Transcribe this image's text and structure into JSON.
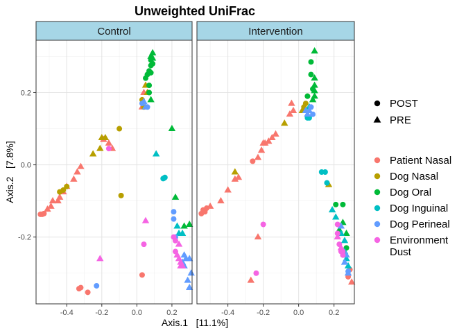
{
  "chart_data": {
    "type": "scatter",
    "title": "Unweighted UniFrac",
    "xlabel": "Axis.1   [11.1%]",
    "ylabel": "Axis.2   [7.8%]",
    "xlim": [
      -0.575,
      0.315
    ],
    "ylim": [
      -0.385,
      0.345
    ],
    "x_ticks": [
      -0.4,
      -0.2,
      0.0,
      0.2
    ],
    "x_tick_labels": [
      "-0.4",
      "-0.2",
      "0.0",
      "0.2"
    ],
    "y_ticks": [
      -0.2,
      0.0,
      0.2
    ],
    "y_tick_labels": [
      "-0.2",
      "0.0",
      "0.2"
    ],
    "grid": true,
    "panels": [
      "Control",
      "Intervention"
    ],
    "shape_legend": [
      {
        "label": "POST",
        "shape": "circle"
      },
      {
        "label": "PRE",
        "shape": "triangle"
      }
    ],
    "color_legend": [
      {
        "key": "patient_nasal",
        "label": "Patient Nasal",
        "color": "#F8766D"
      },
      {
        "key": "dog_nasal",
        "label": "Dog Nasal",
        "color": "#B79F00"
      },
      {
        "key": "dog_oral",
        "label": "Dog Oral",
        "color": "#00BA38"
      },
      {
        "key": "dog_inguinal",
        "label": "Dog Inguinal",
        "color": "#00BFC4"
      },
      {
        "key": "dog_perineal",
        "label": "Dog Perineal",
        "color": "#619CFF"
      },
      {
        "key": "environment_dust",
        "label": "Environment Dust",
        "label_lines": [
          "Environment",
          "Dust"
        ],
        "color": "#F564E3"
      }
    ],
    "series": [
      {
        "panel": "Control",
        "group": "patient_nasal",
        "shape": "circle",
        "points": [
          [
            -0.55,
            -0.137
          ],
          [
            -0.54,
            -0.137
          ],
          [
            -0.53,
            -0.135
          ],
          [
            -0.33,
            -0.343
          ],
          [
            -0.32,
            -0.34
          ],
          [
            -0.28,
            -0.353
          ],
          [
            0.03,
            -0.305
          ]
        ]
      },
      {
        "panel": "Control",
        "group": "patient_nasal",
        "shape": "triangle",
        "points": [
          [
            -0.51,
            -0.123
          ],
          [
            -0.49,
            -0.115
          ],
          [
            -0.48,
            -0.1
          ],
          [
            -0.45,
            -0.1
          ],
          [
            -0.44,
            -0.09
          ],
          [
            -0.42,
            -0.075
          ],
          [
            -0.4,
            -0.06
          ],
          [
            -0.36,
            -0.04
          ],
          [
            -0.34,
            -0.02
          ],
          [
            -0.32,
            -0.005
          ],
          [
            -0.19,
            0.07
          ],
          [
            -0.16,
            0.06
          ],
          [
            -0.14,
            0.045
          ],
          [
            0.03,
            0.16
          ],
          [
            0.04,
            0.2
          ],
          [
            0.05,
            0.22
          ]
        ]
      },
      {
        "panel": "Control",
        "group": "dog_nasal",
        "shape": "circle",
        "points": [
          [
            -0.44,
            -0.075
          ],
          [
            -0.42,
            -0.07
          ],
          [
            -0.4,
            -0.06
          ],
          [
            -0.1,
            0.1
          ],
          [
            -0.09,
            -0.085
          ],
          [
            0.03,
            0.18
          ],
          [
            0.04,
            0.16
          ]
        ]
      },
      {
        "panel": "Control",
        "group": "dog_nasal",
        "shape": "triangle",
        "points": [
          [
            -0.25,
            0.03
          ],
          [
            -0.21,
            0.045
          ],
          [
            -0.2,
            0.075
          ],
          [
            -0.18,
            0.075
          ],
          [
            0.05,
            0.22
          ],
          [
            0.06,
            0.2
          ]
        ]
      },
      {
        "panel": "Control",
        "group": "dog_oral",
        "shape": "circle",
        "points": [
          [
            0.05,
            0.24
          ],
          [
            0.06,
            0.25
          ],
          [
            0.07,
            0.26
          ],
          [
            0.08,
            0.255
          ],
          [
            0.08,
            0.275
          ],
          [
            0.08,
            0.29
          ],
          [
            0.09,
            0.28
          ],
          [
            0.07,
            0.22
          ],
          [
            0.07,
            0.2
          ]
        ]
      },
      {
        "panel": "Control",
        "group": "dog_oral",
        "shape": "triangle",
        "points": [
          [
            0.08,
            0.3
          ],
          [
            0.09,
            0.31
          ],
          [
            0.09,
            0.295
          ],
          [
            0.2,
            0.1
          ],
          [
            0.22,
            -0.09
          ],
          [
            0.27,
            -0.17
          ],
          [
            0.3,
            -0.165
          ],
          [
            0.08,
            0.18
          ]
        ]
      },
      {
        "panel": "Control",
        "group": "dog_inguinal",
        "shape": "circle",
        "points": [
          [
            0.15,
            -0.038
          ],
          [
            0.155,
            -0.037
          ],
          [
            0.16,
            -0.035
          ]
        ]
      },
      {
        "panel": "Control",
        "group": "dog_inguinal",
        "shape": "triangle",
        "points": [
          [
            0.11,
            0.03
          ],
          [
            0.23,
            -0.17
          ],
          [
            0.24,
            -0.19
          ],
          [
            0.26,
            -0.19
          ]
        ]
      },
      {
        "panel": "Control",
        "group": "dog_perineal",
        "shape": "circle",
        "points": [
          [
            -0.23,
            -0.335
          ],
          [
            0.03,
            0.17
          ],
          [
            0.06,
            0.16
          ],
          [
            0.21,
            -0.13
          ],
          [
            0.21,
            -0.15
          ],
          [
            0.22,
            -0.2
          ]
        ]
      },
      {
        "panel": "Control",
        "group": "dog_perineal",
        "shape": "triangle",
        "points": [
          [
            0.04,
            0.175
          ],
          [
            0.05,
            0.16
          ],
          [
            0.26,
            -0.27
          ],
          [
            0.27,
            -0.28
          ],
          [
            0.28,
            -0.26
          ],
          [
            0.29,
            -0.32
          ],
          [
            0.3,
            -0.34
          ],
          [
            0.31,
            -0.3
          ],
          [
            0.27,
            -0.25
          ],
          [
            0.3,
            -0.26
          ]
        ]
      },
      {
        "panel": "Control",
        "group": "environment_dust",
        "shape": "circle",
        "points": [
          [
            -0.16,
            0.045
          ],
          [
            0.04,
            -0.22
          ],
          [
            0.21,
            -0.2
          ],
          [
            0.22,
            -0.21
          ],
          [
            0.22,
            -0.24
          ]
        ]
      },
      {
        "panel": "Control",
        "group": "environment_dust",
        "shape": "triangle",
        "points": [
          [
            -0.21,
            -0.26
          ],
          [
            0.05,
            -0.155
          ],
          [
            0.23,
            -0.25
          ],
          [
            0.24,
            -0.26
          ],
          [
            0.25,
            -0.27
          ],
          [
            0.25,
            -0.28
          ],
          [
            0.26,
            -0.28
          ],
          [
            0.24,
            -0.22
          ]
        ]
      },
      {
        "panel": "Intervention",
        "group": "patient_nasal",
        "shape": "circle",
        "points": [
          [
            -0.55,
            -0.135
          ],
          [
            -0.54,
            -0.125
          ],
          [
            -0.53,
            -0.13
          ],
          [
            -0.52,
            -0.12
          ],
          [
            -0.26,
            0.01
          ],
          [
            0.28,
            -0.31
          ],
          [
            0.29,
            -0.29
          ]
        ]
      },
      {
        "panel": "Intervention",
        "group": "patient_nasal",
        "shape": "triangle",
        "points": [
          [
            -0.5,
            -0.115
          ],
          [
            -0.44,
            -0.1
          ],
          [
            -0.4,
            -0.07
          ],
          [
            -0.36,
            -0.04
          ],
          [
            -0.34,
            -0.035
          ],
          [
            -0.23,
            0.02
          ],
          [
            -0.21,
            0.04
          ],
          [
            -0.2,
            0.06
          ],
          [
            -0.19,
            0.06
          ],
          [
            -0.17,
            0.065
          ],
          [
            -0.15,
            0.075
          ],
          [
            -0.13,
            0.085
          ],
          [
            -0.05,
            0.14
          ],
          [
            -0.03,
            0.15
          ],
          [
            -0.27,
            -0.32
          ],
          [
            -0.23,
            -0.2
          ],
          [
            -0.04,
            0.17
          ],
          [
            0.3,
            -0.325
          ]
        ]
      },
      {
        "panel": "Intervention",
        "group": "dog_nasal",
        "shape": "circle",
        "points": [
          [
            0.03,
            0.16
          ],
          [
            0.04,
            0.17
          ],
          [
            0.05,
            0.19
          ]
        ]
      },
      {
        "panel": "Intervention",
        "group": "dog_nasal",
        "shape": "triangle",
        "points": [
          [
            -0.36,
            -0.02
          ],
          [
            -0.08,
            0.115
          ],
          [
            0.02,
            0.15
          ],
          [
            0.17,
            -0.055
          ]
        ]
      },
      {
        "panel": "Intervention",
        "group": "dog_oral",
        "shape": "circle",
        "points": [
          [
            0.07,
            0.285
          ],
          [
            0.07,
            0.25
          ],
          [
            0.08,
            0.21
          ],
          [
            0.05,
            0.19
          ],
          [
            0.21,
            -0.11
          ],
          [
            0.25,
            -0.11
          ],
          [
            0.27,
            -0.23
          ]
        ]
      },
      {
        "panel": "Intervention",
        "group": "dog_oral",
        "shape": "triangle",
        "points": [
          [
            0.09,
            0.315
          ],
          [
            0.09,
            0.24
          ],
          [
            0.09,
            0.22
          ],
          [
            0.09,
            0.205
          ],
          [
            0.09,
            0.19
          ],
          [
            0.08,
            0.18
          ],
          [
            0.25,
            -0.16
          ],
          [
            0.27,
            -0.19
          ],
          [
            0.23,
            -0.18
          ]
        ]
      },
      {
        "panel": "Intervention",
        "group": "dog_inguinal",
        "shape": "circle",
        "points": [
          [
            0.13,
            -0.02
          ],
          [
            0.15,
            -0.02
          ],
          [
            0.16,
            -0.05
          ],
          [
            0.05,
            0.13
          ],
          [
            0.06,
            0.13
          ]
        ]
      },
      {
        "panel": "Intervention",
        "group": "dog_inguinal",
        "shape": "triangle",
        "points": [
          [
            0.19,
            -0.125
          ],
          [
            0.21,
            -0.145
          ],
          [
            0.24,
            -0.19
          ],
          [
            0.26,
            -0.21
          ],
          [
            0.26,
            -0.24
          ],
          [
            0.27,
            -0.26
          ],
          [
            0.28,
            -0.28
          ],
          [
            0.06,
            0.16
          ]
        ]
      },
      {
        "panel": "Intervention",
        "group": "dog_perineal",
        "shape": "circle",
        "points": [
          [
            0.07,
            0.16
          ],
          [
            0.08,
            0.14
          ],
          [
            0.28,
            -0.295
          ]
        ]
      },
      {
        "panel": "Intervention",
        "group": "dog_perineal",
        "shape": "triangle",
        "points": [
          [
            0.04,
            0.15
          ],
          [
            0.05,
            0.14
          ],
          [
            0.06,
            0.15
          ],
          [
            0.24,
            -0.17
          ],
          [
            0.27,
            -0.25
          ],
          [
            0.26,
            -0.27
          ],
          [
            0.28,
            -0.3
          ]
        ]
      },
      {
        "panel": "Intervention",
        "group": "environment_dust",
        "shape": "circle",
        "points": [
          [
            -0.2,
            -0.165
          ],
          [
            -0.24,
            -0.3
          ],
          [
            0.22,
            -0.165
          ],
          [
            0.22,
            -0.19
          ],
          [
            0.23,
            -0.22
          ],
          [
            0.24,
            -0.24
          ],
          [
            0.25,
            -0.24
          ],
          [
            0.25,
            -0.25
          ]
        ]
      },
      {
        "panel": "Intervention",
        "group": "environment_dust",
        "shape": "triangle",
        "points": [
          [
            0.22,
            -0.2
          ],
          [
            0.24,
            -0.23
          ]
        ]
      }
    ]
  }
}
